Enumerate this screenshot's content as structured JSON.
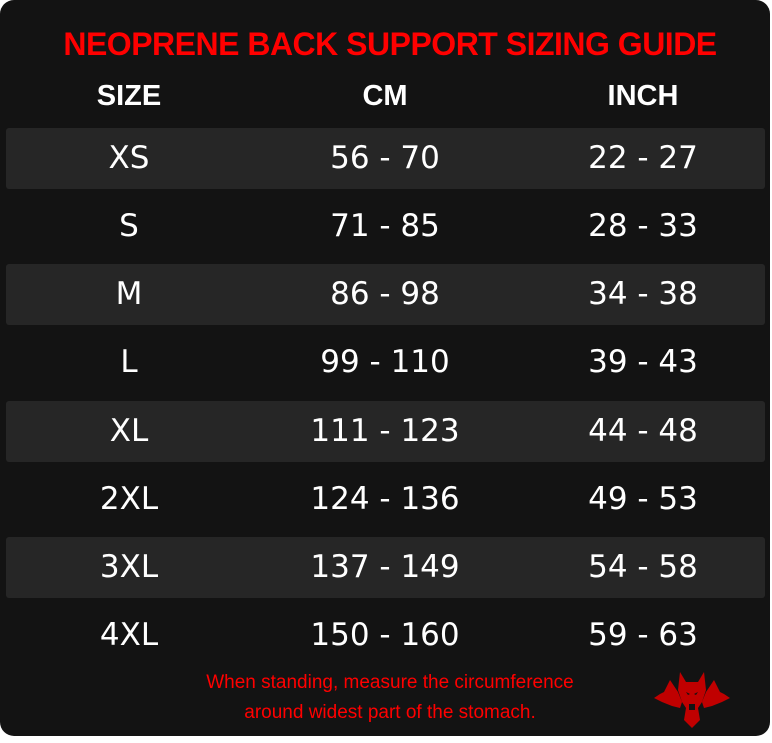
{
  "title": "NEOPRENE BACK SUPPORT SIZING GUIDE",
  "headers": [
    "SIZE",
    "CM",
    "INCH"
  ],
  "rows": [
    [
      "XS",
      "56 - 70",
      "22 - 27"
    ],
    [
      "S",
      "71 - 85",
      "28 - 33"
    ],
    [
      "M",
      "86 - 98",
      "34 - 38"
    ],
    [
      "L",
      "99 - 110",
      "39 - 43"
    ],
    [
      "XL",
      "111 - 123",
      "44 - 48"
    ],
    [
      "2XL",
      "124 - 136",
      "49 - 53"
    ],
    [
      "3XL",
      "137 - 149",
      "54 - 58"
    ],
    [
      "4XL",
      "150 - 160",
      "59 - 63"
    ]
  ],
  "note": {
    "line1": "When standing, measure the circumference",
    "line2": "around widest part of the stomach."
  },
  "colors": {
    "accent": "#ff0000",
    "background": "#131313",
    "stripe": "#262626"
  },
  "logo": "three-headed-wolf-logo"
}
